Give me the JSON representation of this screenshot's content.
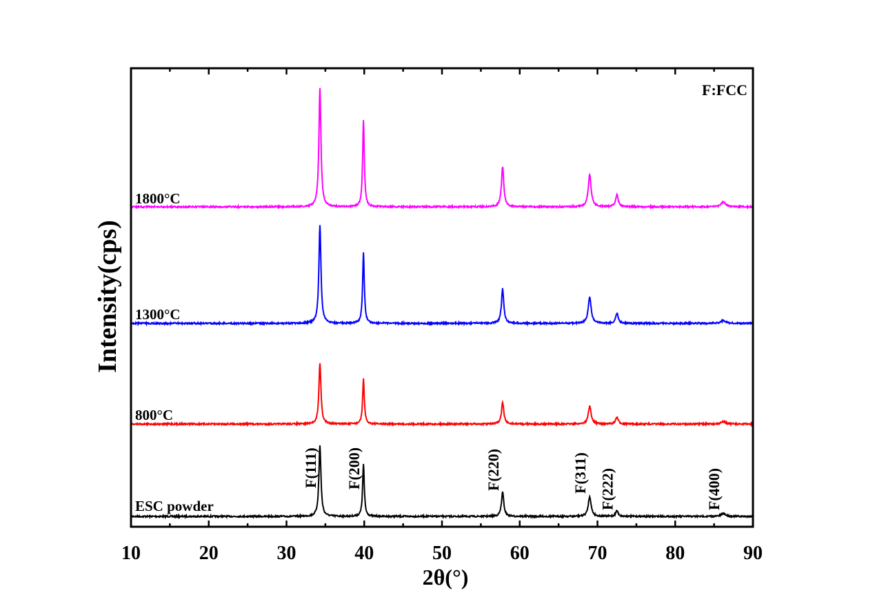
{
  "chart_data": {
    "type": "line",
    "title": "",
    "xlabel": "2θ(°)",
    "ylabel": "Intensity(cps)",
    "xlim": [
      10,
      90
    ],
    "xticks": [
      10,
      20,
      30,
      40,
      50,
      60,
      70,
      80,
      90
    ],
    "y_ticks_shown": false,
    "grid": false,
    "stacked_offset_curves": true,
    "phase_legend": "F:FCC",
    "peaks_2theta": [
      34.3,
      39.9,
      57.8,
      69.0,
      72.5,
      86.2
    ],
    "series": [
      {
        "name": "ESC powder",
        "color": "#000000",
        "peaks": [
          34.3,
          39.9,
          57.8,
          69.0,
          72.5,
          86.2
        ],
        "relative_intensity": [
          1.0,
          0.74,
          0.34,
          0.28,
          0.08,
          0.04
        ]
      },
      {
        "name": "800°C",
        "color": "#ff0000",
        "peaks": [
          34.3,
          39.9,
          57.8,
          69.0,
          72.5,
          86.2
        ],
        "relative_intensity": [
          1.0,
          0.74,
          0.35,
          0.29,
          0.11,
          0.04
        ]
      },
      {
        "name": "1300°C",
        "color": "#0000ff",
        "peaks": [
          34.3,
          39.9,
          57.8,
          69.0,
          72.5,
          86.2
        ],
        "relative_intensity": [
          1.0,
          0.72,
          0.35,
          0.27,
          0.1,
          0.03
        ]
      },
      {
        "name": "1800°C",
        "color": "#ff00ff",
        "peaks": [
          34.3,
          39.9,
          57.8,
          69.0,
          72.5,
          86.2
        ],
        "relative_intensity": [
          1.0,
          0.73,
          0.34,
          0.27,
          0.1,
          0.04
        ]
      }
    ],
    "peak_labels": [
      {
        "text": "F(111)",
        "x": 34.3
      },
      {
        "text": "F(200)",
        "x": 39.9
      },
      {
        "text": "F(220)",
        "x": 57.8
      },
      {
        "text": "F(311)",
        "x": 69.0
      },
      {
        "text": "F(222)",
        "x": 72.5
      },
      {
        "text": "F(400)",
        "x": 86.2
      }
    ]
  }
}
